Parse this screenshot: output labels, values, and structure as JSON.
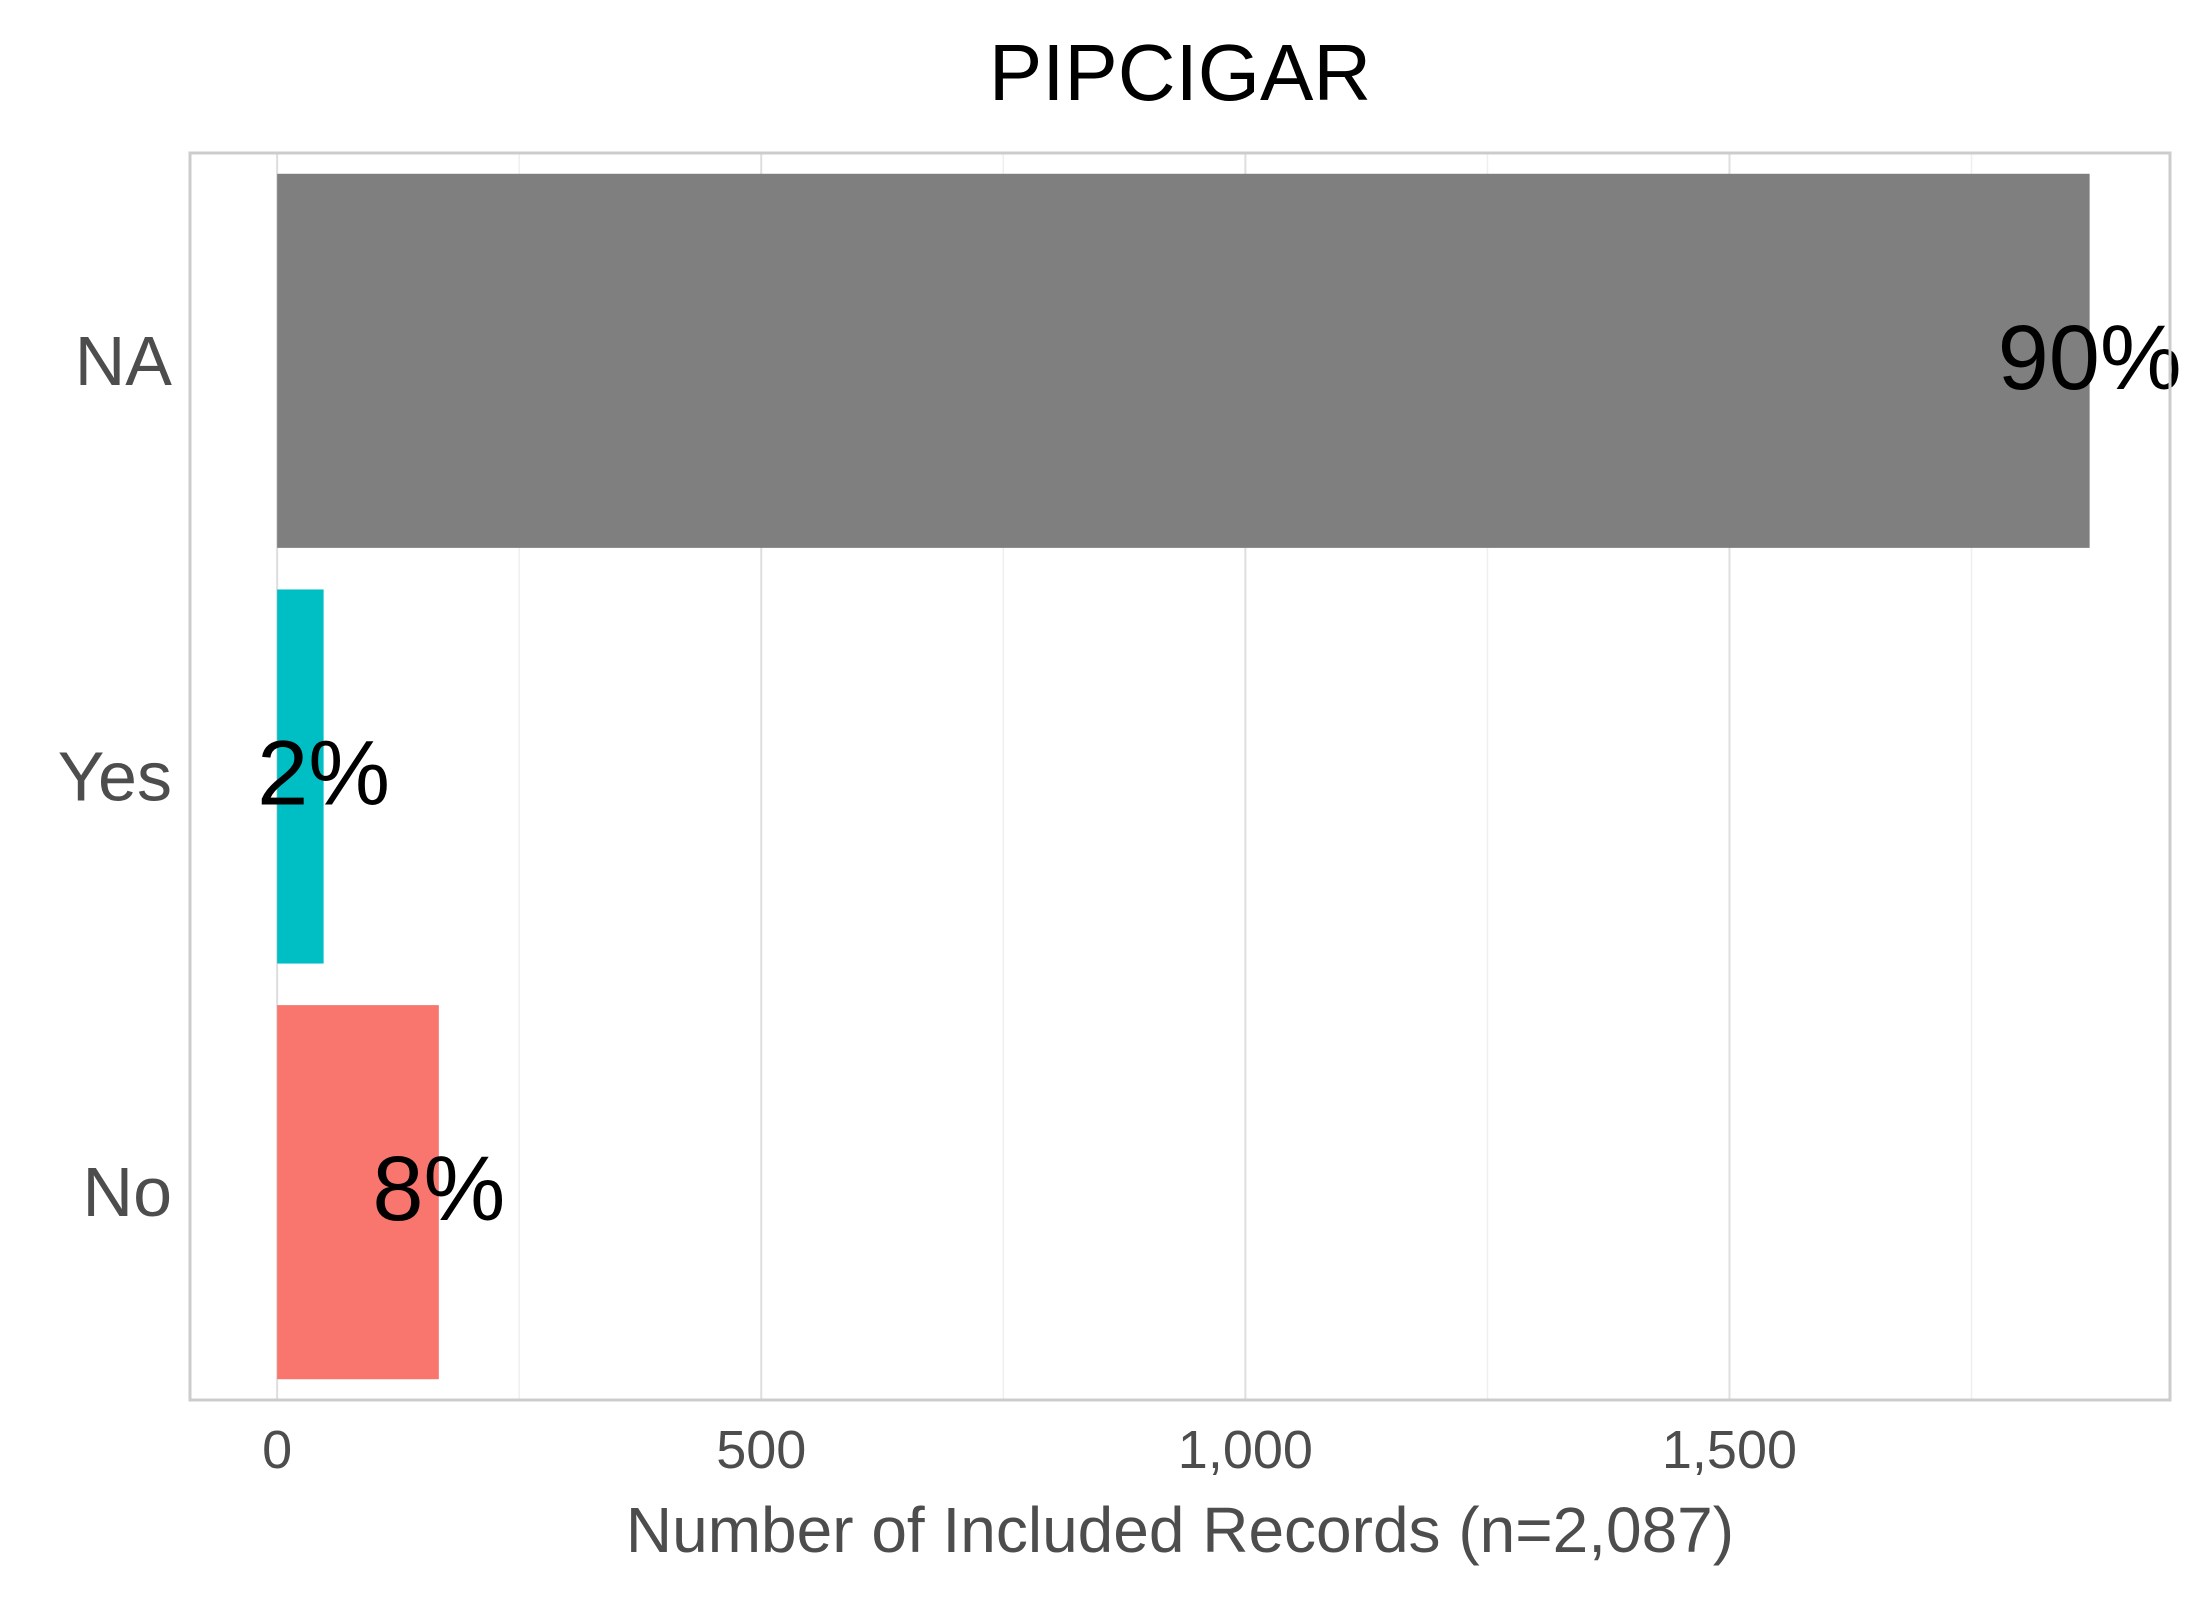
{
  "chart_data": {
    "type": "bar",
    "orientation": "horizontal",
    "title": "PIPCIGAR",
    "xlabel": "Number of Included Records (n=2,087)",
    "ylabel": "",
    "categories": [
      "NA",
      "Yes",
      "No"
    ],
    "values": [
      1872,
      48,
      167
    ],
    "labels": [
      "90%",
      "2%",
      "8%"
    ],
    "colors": [
      "#7f7f7f",
      "#00bfc4",
      "#f8766d"
    ],
    "xlim": [
      -90,
      1955
    ],
    "xticks": [
      0,
      500,
      1000,
      1500
    ],
    "xtick_labels": [
      "0",
      "500",
      "1,000",
      "1,500"
    ],
    "grid": true,
    "legend": "none"
  }
}
